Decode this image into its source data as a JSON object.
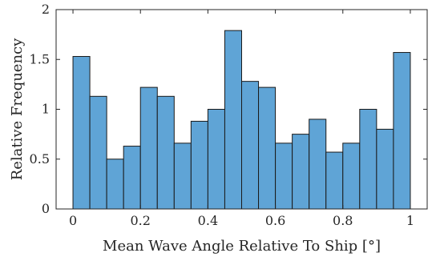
{
  "chart_data": {
    "type": "bar",
    "chart_kind": "histogram",
    "xlabel": "Mean Wave Angle Relative To Ship [°]",
    "ylabel": "Relative Frequency",
    "xlim": [
      -0.05,
      1.05
    ],
    "ylim": [
      0,
      2
    ],
    "bin_edges": [
      0,
      0.05,
      0.1,
      0.15,
      0.2,
      0.25,
      0.3,
      0.35,
      0.4,
      0.45,
      0.5,
      0.55,
      0.6,
      0.65,
      0.7,
      0.75,
      0.8,
      0.85,
      0.9,
      0.95,
      1.0
    ],
    "values": [
      1.53,
      1.13,
      0.5,
      0.63,
      1.22,
      1.13,
      0.66,
      0.88,
      1.0,
      1.79,
      1.28,
      1.22,
      0.66,
      0.75,
      0.9,
      0.57,
      0.66,
      1.0,
      0.8,
      1.57
    ],
    "xticks": [
      0,
      0.2,
      0.4,
      0.6,
      0.8,
      1
    ],
    "xtick_labels": [
      "0",
      "0.2",
      "0.4",
      "0.6",
      "0.8",
      "1"
    ],
    "yticks": [
      0,
      0.5,
      1,
      1.5,
      2
    ],
    "ytick_labels": [
      "0",
      "0.5",
      "1",
      "1.5",
      "2"
    ],
    "bar_color": "#5fa4d6",
    "edge_color": "#1a1a1a",
    "grid": false,
    "box": true
  }
}
